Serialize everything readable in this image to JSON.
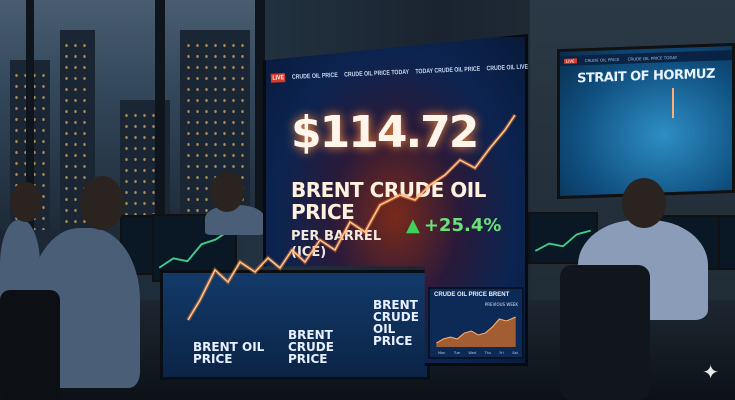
{
  "main_screen": {
    "ticker": [
      "LIVE",
      "CRUDE OIL PRICE",
      "CRUDE OIL PRICE TODAY",
      "TODAY CRUDE OIL PRICE",
      "CRUDE OIL LIVE"
    ],
    "price": "$114.72",
    "title_line1": "BRENT CRUDE OIL",
    "title_line2": "PRICE",
    "subtitle_line1": "PER BARREL",
    "subtitle_line2": "(ICE)",
    "change": "+25.4%",
    "change_color": "#6ee07a",
    "mini_chart": {
      "title": "CRUDE OIL PRICE BRENT",
      "subtitle": "PREVIOUS WEEK",
      "days": [
        "Mon",
        "Tue",
        "Wed",
        "Thu",
        "Fri",
        "Sat"
      ]
    }
  },
  "back_screen": {
    "labels": [
      "BRENT OIL PRICE",
      "BRENT CRUDE PRICE",
      "BRENT CRUDE OIL PRICE"
    ]
  },
  "wall_screen": {
    "title": "STRAIT OF HORMUZ"
  },
  "accent_color": "#ff7a2a",
  "icons": [
    "sparkle-icon",
    "triangle-up-icon"
  ]
}
